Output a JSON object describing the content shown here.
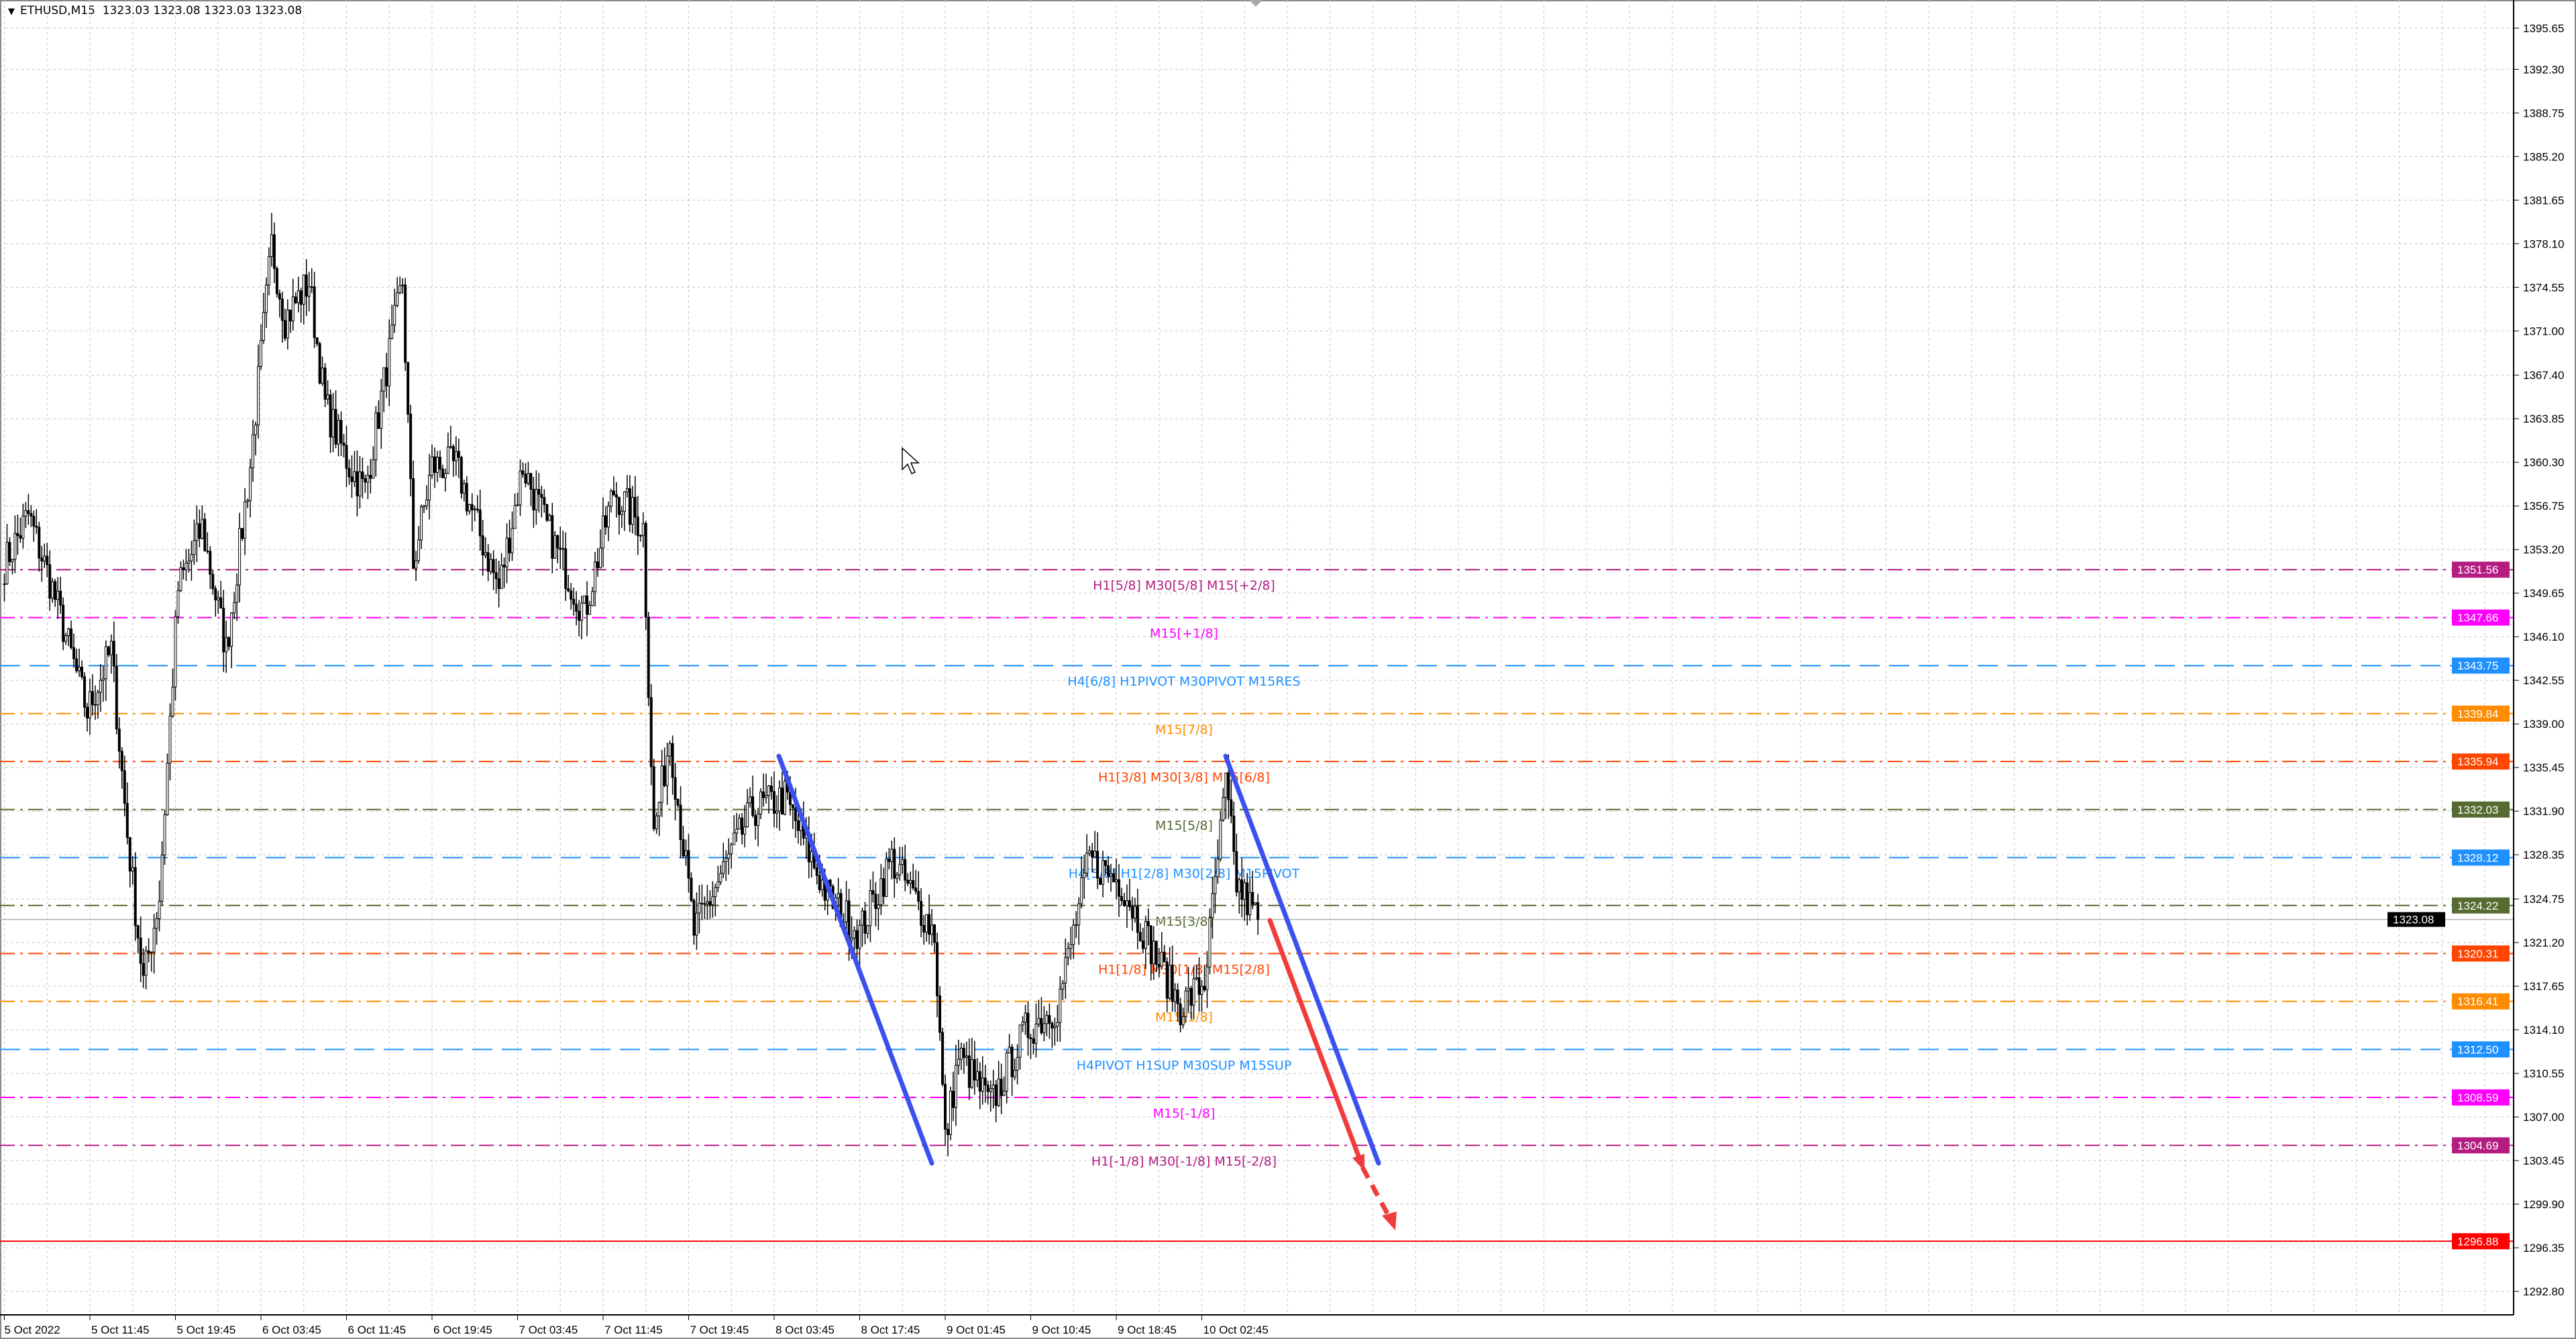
{
  "header": {
    "symbol": "ETHUSD,M15",
    "ohlc": "1323.03 1323.08 1323.03 1323.08",
    "menu_icon": "triangle-down-icon"
  },
  "chart_data": {
    "type": "candlestick",
    "symbol": "ETHUSD",
    "timeframe": "M15",
    "ylim": [
      1292.8,
      1395.65
    ],
    "grid": true,
    "y_ticks": [
      "1395.65",
      "1392.30",
      "1388.75",
      "1385.20",
      "1381.65",
      "1378.10",
      "1374.55",
      "1371.00",
      "1367.40",
      "1363.85",
      "1360.30",
      "1356.75",
      "1353.20",
      "1349.65",
      "1346.10",
      "1342.55",
      "1339.00",
      "1335.45",
      "1331.90",
      "1328.35",
      "1324.75",
      "1321.20",
      "1317.65",
      "1314.10",
      "1310.55",
      "1307.00",
      "1303.45",
      "1299.90",
      "1296.35",
      "1292.80"
    ],
    "x_ticks": [
      "5 Oct 2022",
      "5 Oct 11:45",
      "5 Oct 19:45",
      "6 Oct 03:45",
      "6 Oct 11:45",
      "6 Oct 19:45",
      "7 Oct 03:45",
      "7 Oct 11:45",
      "7 Oct 19:45",
      "8 Oct 03:45",
      "8 Oct 17:45",
      "9 Oct 01:45",
      "9 Oct 10:45",
      "9 Oct 18:45",
      "10 Oct 02:45"
    ],
    "bars_per_x_tick": 32,
    "approx_close_path": [
      [
        0,
        1352
      ],
      [
        9,
        1356
      ],
      [
        18,
        1350
      ],
      [
        31,
        1340
      ],
      [
        40,
        1345
      ],
      [
        46,
        1330
      ],
      [
        52,
        1318
      ],
      [
        58,
        1325
      ],
      [
        65,
        1350
      ],
      [
        74,
        1355
      ],
      [
        83,
        1345
      ],
      [
        92,
        1360
      ],
      [
        100,
        1378
      ],
      [
        105,
        1372
      ],
      [
        114,
        1375
      ],
      [
        120,
        1365
      ],
      [
        129,
        1360
      ],
      [
        135,
        1358
      ],
      [
        143,
        1368
      ],
      [
        149,
        1375
      ],
      [
        153,
        1352
      ],
      [
        160,
        1360
      ],
      [
        169,
        1360
      ],
      [
        185,
        1350
      ],
      [
        194,
        1360
      ],
      [
        203,
        1355
      ],
      [
        217,
        1348
      ],
      [
        228,
        1358
      ],
      [
        239,
        1355
      ],
      [
        243,
        1330
      ],
      [
        249,
        1338
      ],
      [
        258,
        1322
      ],
      [
        271,
        1328
      ],
      [
        280,
        1332
      ],
      [
        292,
        1333
      ],
      [
        308,
        1325
      ],
      [
        320,
        1322
      ],
      [
        332,
        1328
      ],
      [
        348,
        1322
      ],
      [
        352,
        1305
      ],
      [
        357,
        1312
      ],
      [
        369,
        1308
      ],
      [
        382,
        1314
      ],
      [
        394,
        1316
      ],
      [
        406,
        1328
      ],
      [
        418,
        1326
      ],
      [
        431,
        1320
      ],
      [
        440,
        1316
      ],
      [
        449,
        1318
      ],
      [
        457,
        1334
      ],
      [
        461,
        1326
      ],
      [
        469,
        1323.08
      ]
    ],
    "current_price": {
      "value": "1323.08",
      "color": "#000000"
    },
    "levels": [
      {
        "price": "1351.56",
        "label": "H1[5/8] M30[5/8] M15[+2/8]",
        "color": "#b41c82",
        "style": "dashdot"
      },
      {
        "price": "1347.66",
        "label": "M15[+1/8]",
        "color": "#ff00ff",
        "style": "dashdot"
      },
      {
        "price": "1343.75",
        "label": "H4[6/8] H1PIVOT M30PIVOT M15RES",
        "color": "#1e90ff",
        "style": "dash"
      },
      {
        "price": "1339.84",
        "label": "M15[7/8]",
        "color": "#ff8c00",
        "style": "dashdot"
      },
      {
        "price": "1335.94",
        "label": "H1[3/8] M30[3/8] M15[6/8]",
        "color": "#ff4500",
        "style": "dashdot"
      },
      {
        "price": "1332.03",
        "label": "M15[5/8]",
        "color": "#556b2f",
        "style": "dashdot"
      },
      {
        "price": "1328.12",
        "label": "H4[5/8] H1[2/8] M30[2/8] M15PIVOT",
        "color": "#1e90ff",
        "style": "dash"
      },
      {
        "price": "1324.22",
        "label": "M15[3/8]",
        "color": "#556b2f",
        "style": "dashdot"
      },
      {
        "price": "1320.31",
        "label": "H1[1/8] M30[1/8] M15[2/8]",
        "color": "#ff4500",
        "style": "dashdot"
      },
      {
        "price": "1316.41",
        "label": "M15[1/8]",
        "color": "#ff8c00",
        "style": "dashdot"
      },
      {
        "price": "1312.50",
        "label": "H4PIVOT H1SUP M30SUP M15SUP",
        "color": "#1e90ff",
        "style": "dash"
      },
      {
        "price": "1308.59",
        "label": "M15[-1/8]",
        "color": "#ff00ff",
        "style": "dashdot"
      },
      {
        "price": "1304.69",
        "label": "H1[-1/8] M30[-1/8] M15[-2/8]",
        "color": "#b41c82",
        "style": "dashdot"
      },
      {
        "price": "1296.88",
        "label": "",
        "color": "#ff0000",
        "style": "solid"
      }
    ],
    "trendline_colors": {
      "channel": "#3c50f0",
      "projection": "#f03c3c"
    }
  }
}
